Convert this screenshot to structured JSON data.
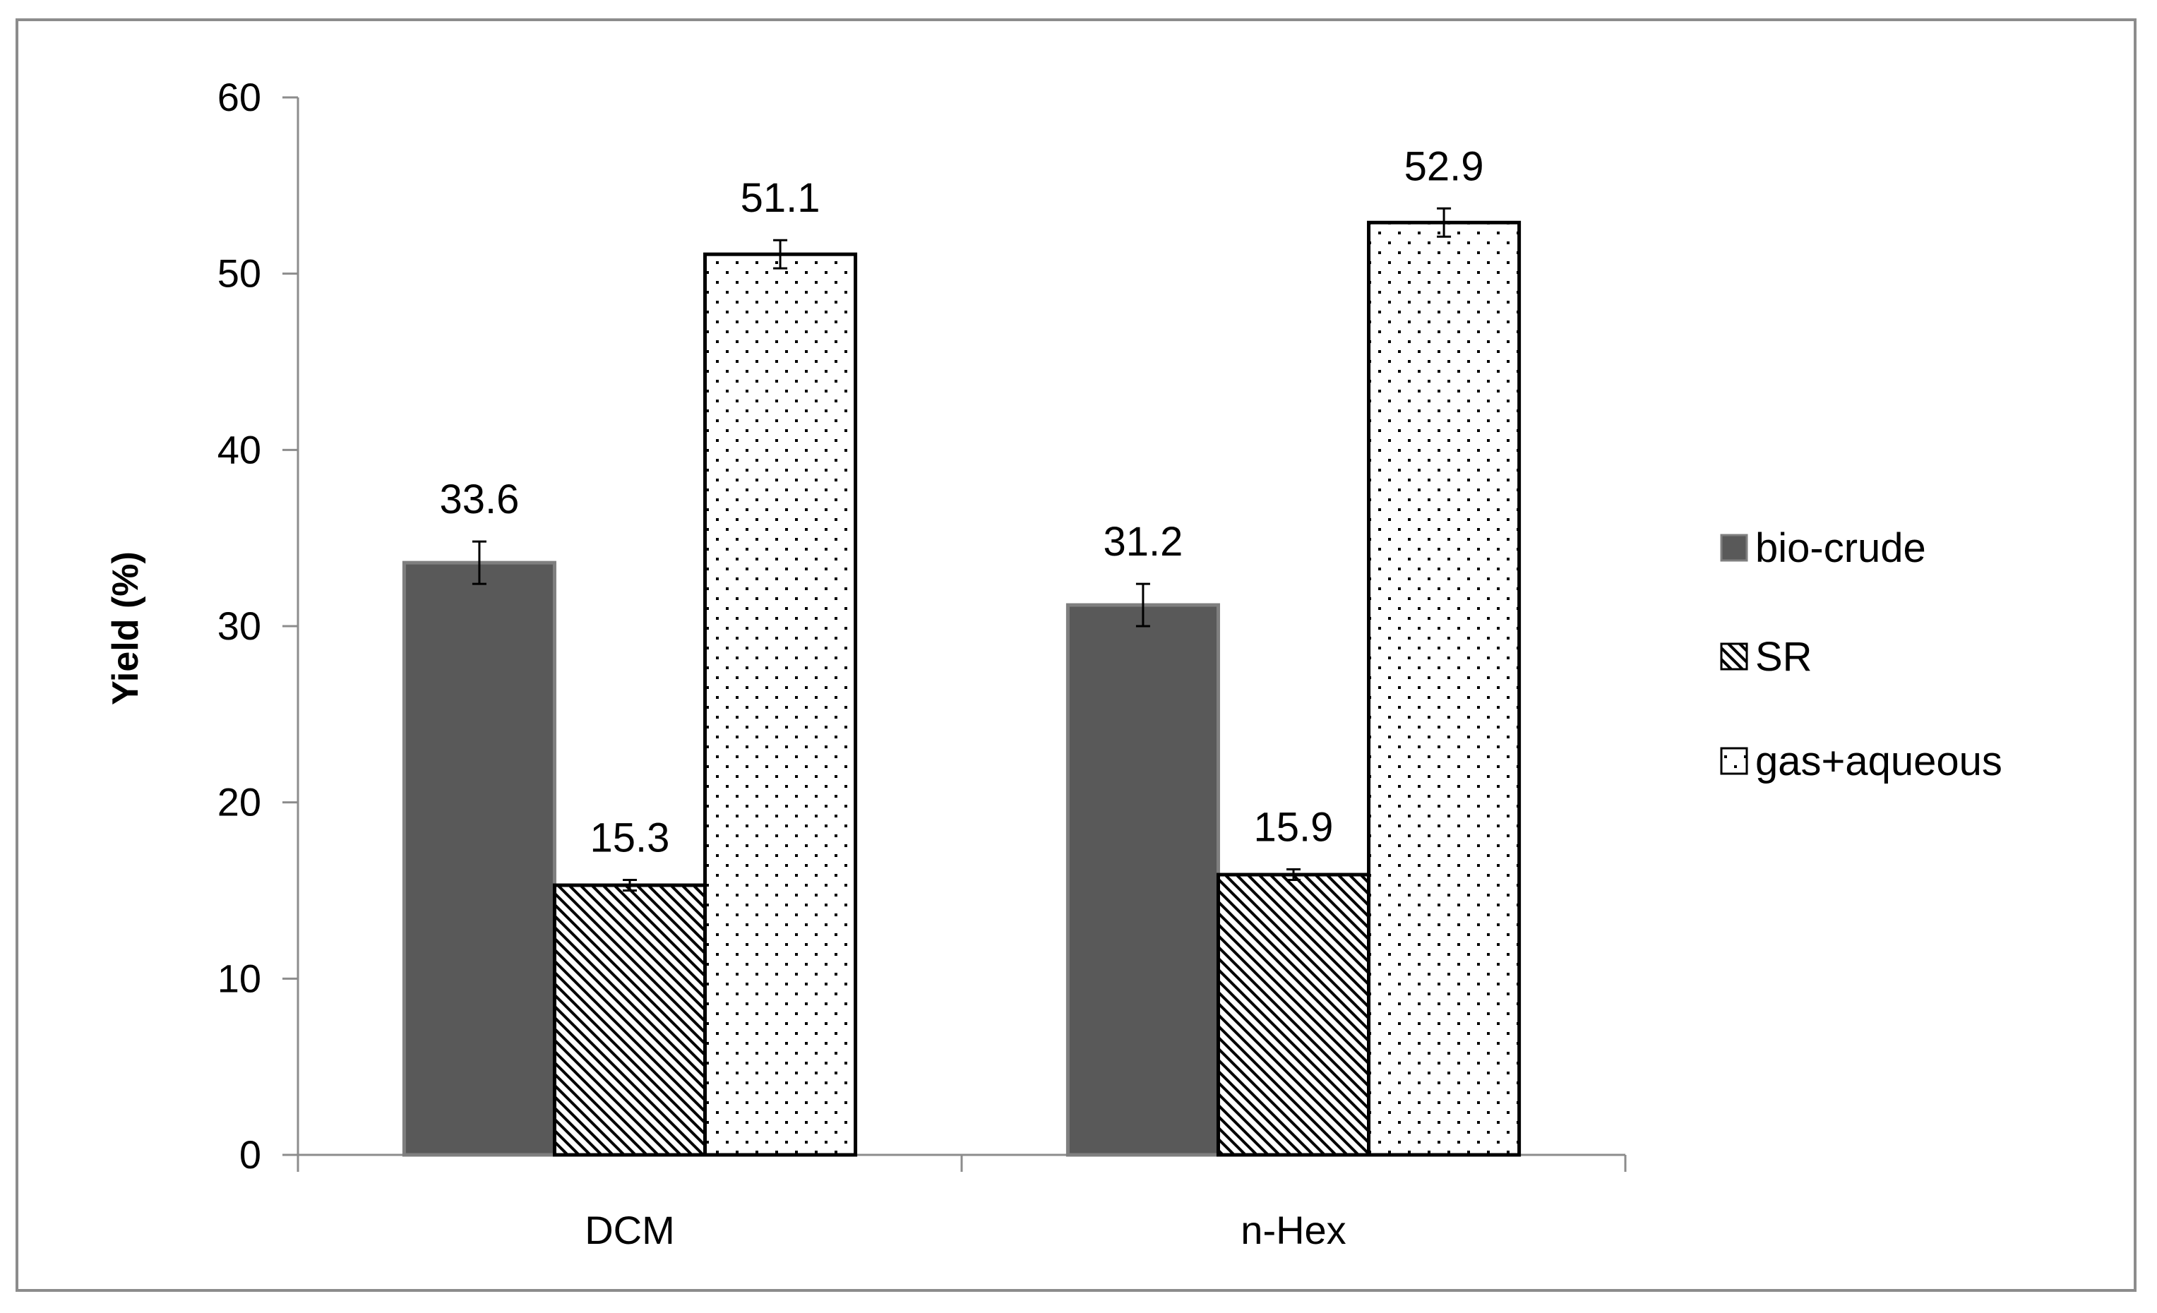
{
  "chart_data": {
    "type": "bar",
    "title": "",
    "xlabel": "",
    "ylabel": "Yield (%)",
    "ylim": [
      0,
      60
    ],
    "yticks": [
      0,
      10,
      20,
      30,
      40,
      50,
      60
    ],
    "grid": false,
    "legend_position": "right",
    "categories": [
      "DCM",
      "n-Hex"
    ],
    "series": [
      {
        "name": "bio-crude",
        "values": [
          33.6,
          31.2
        ],
        "errors": [
          1.2,
          1.2
        ],
        "labels": [
          "33.6",
          "31.2"
        ],
        "fill": "solid",
        "color": "#595959"
      },
      {
        "name": "SR",
        "values": [
          15.3,
          15.9
        ],
        "errors": [
          0.3,
          0.3
        ],
        "labels": [
          "15.3",
          "15.9"
        ],
        "fill": "diagonal-hatch",
        "color": "#000000"
      },
      {
        "name": "gas+aqueous",
        "values": [
          51.1,
          52.9
        ],
        "errors": [
          0.8,
          0.8
        ],
        "labels": [
          "51.1",
          "52.9"
        ],
        "fill": "dots",
        "color": "#000000"
      }
    ]
  }
}
